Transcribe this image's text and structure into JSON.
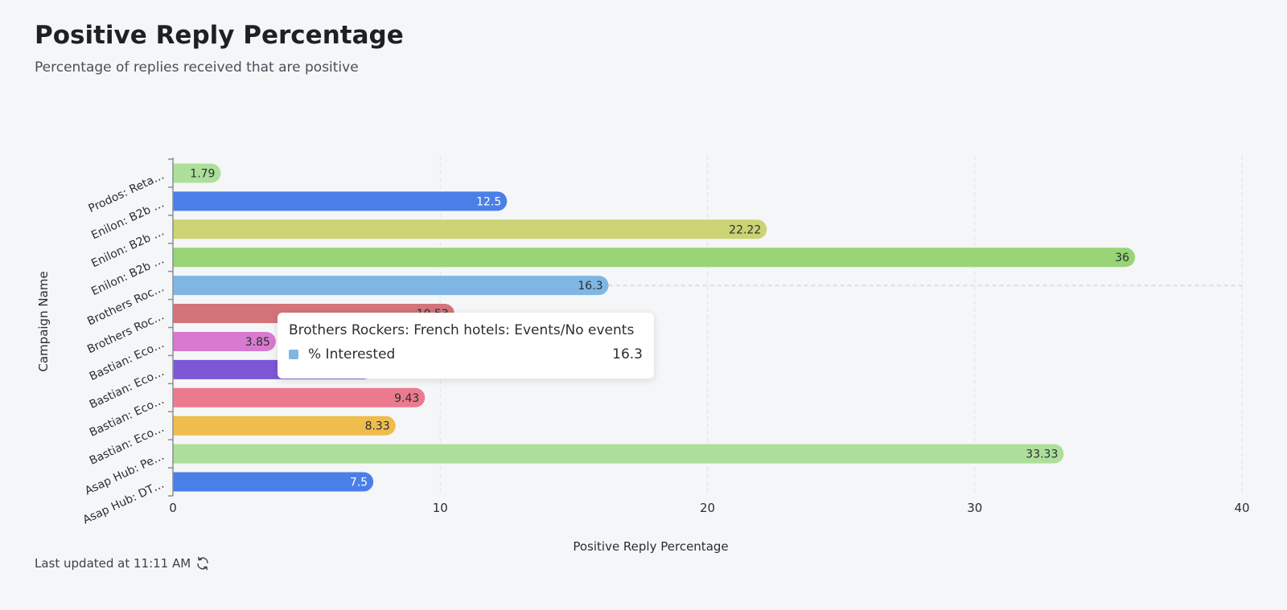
{
  "header": {
    "title": "Positive Reply Percentage",
    "subtitle": "Percentage of replies received that are positive"
  },
  "footer": {
    "last_updated": "Last updated at 11:11 AM",
    "icon": "refresh-icon"
  },
  "tooltip": {
    "title": "Brothers Rockers: French hotels: Events/No events",
    "series_label": "% Interested",
    "value": "16.3",
    "color": "#80b6e3"
  },
  "chart_data": {
    "type": "bar",
    "orientation": "horizontal",
    "xlabel": "Positive Reply Percentage",
    "ylabel": "Campaign Name",
    "xlim": [
      0,
      40
    ],
    "xticks": [
      0,
      10,
      20,
      30,
      40
    ],
    "grid": "vertical-dashed",
    "hovered_index": 4,
    "categories": [
      "Prodos: Reta…",
      "Enilon: B2b …",
      "Enilon: B2b …",
      "Enilon: B2b …",
      "Brothers Roc…",
      "Brothers Roc…",
      "Bastian: Eco…",
      "Bastian: Eco…",
      "Bastian: Eco…",
      "Bastian: Eco…",
      "Asap Hub: Pe…",
      "Asap Hub: DT…"
    ],
    "values": [
      1.79,
      12.5,
      22.22,
      36,
      16.3,
      10.53,
      3.85,
      7.5,
      9.43,
      8.33,
      33.33,
      7.5
    ],
    "labels": [
      "1.79",
      "12.5",
      "22.22",
      "36",
      "16.3",
      "10.53",
      "3.85",
      "",
      "9.43",
      "8.33",
      "33.33",
      "7.5"
    ],
    "colors": [
      "#addf9a",
      "#4b7fe8",
      "#cbd373",
      "#99d476",
      "#80b6e3",
      "#d3747a",
      "#d77ad0",
      "#7c58d6",
      "#ec7a8e",
      "#efbd4b",
      "#addf9a",
      "#4b7fe8"
    ],
    "label_colors": [
      "#2a2e33",
      "#ffffff",
      "#2a2e33",
      "#2a2e33",
      "#2a2e33",
      "#2a2e33",
      "#2a2e33",
      "#ffffff",
      "#2a2e33",
      "#2a2e33",
      "#2a2e33",
      "#ffffff"
    ]
  }
}
